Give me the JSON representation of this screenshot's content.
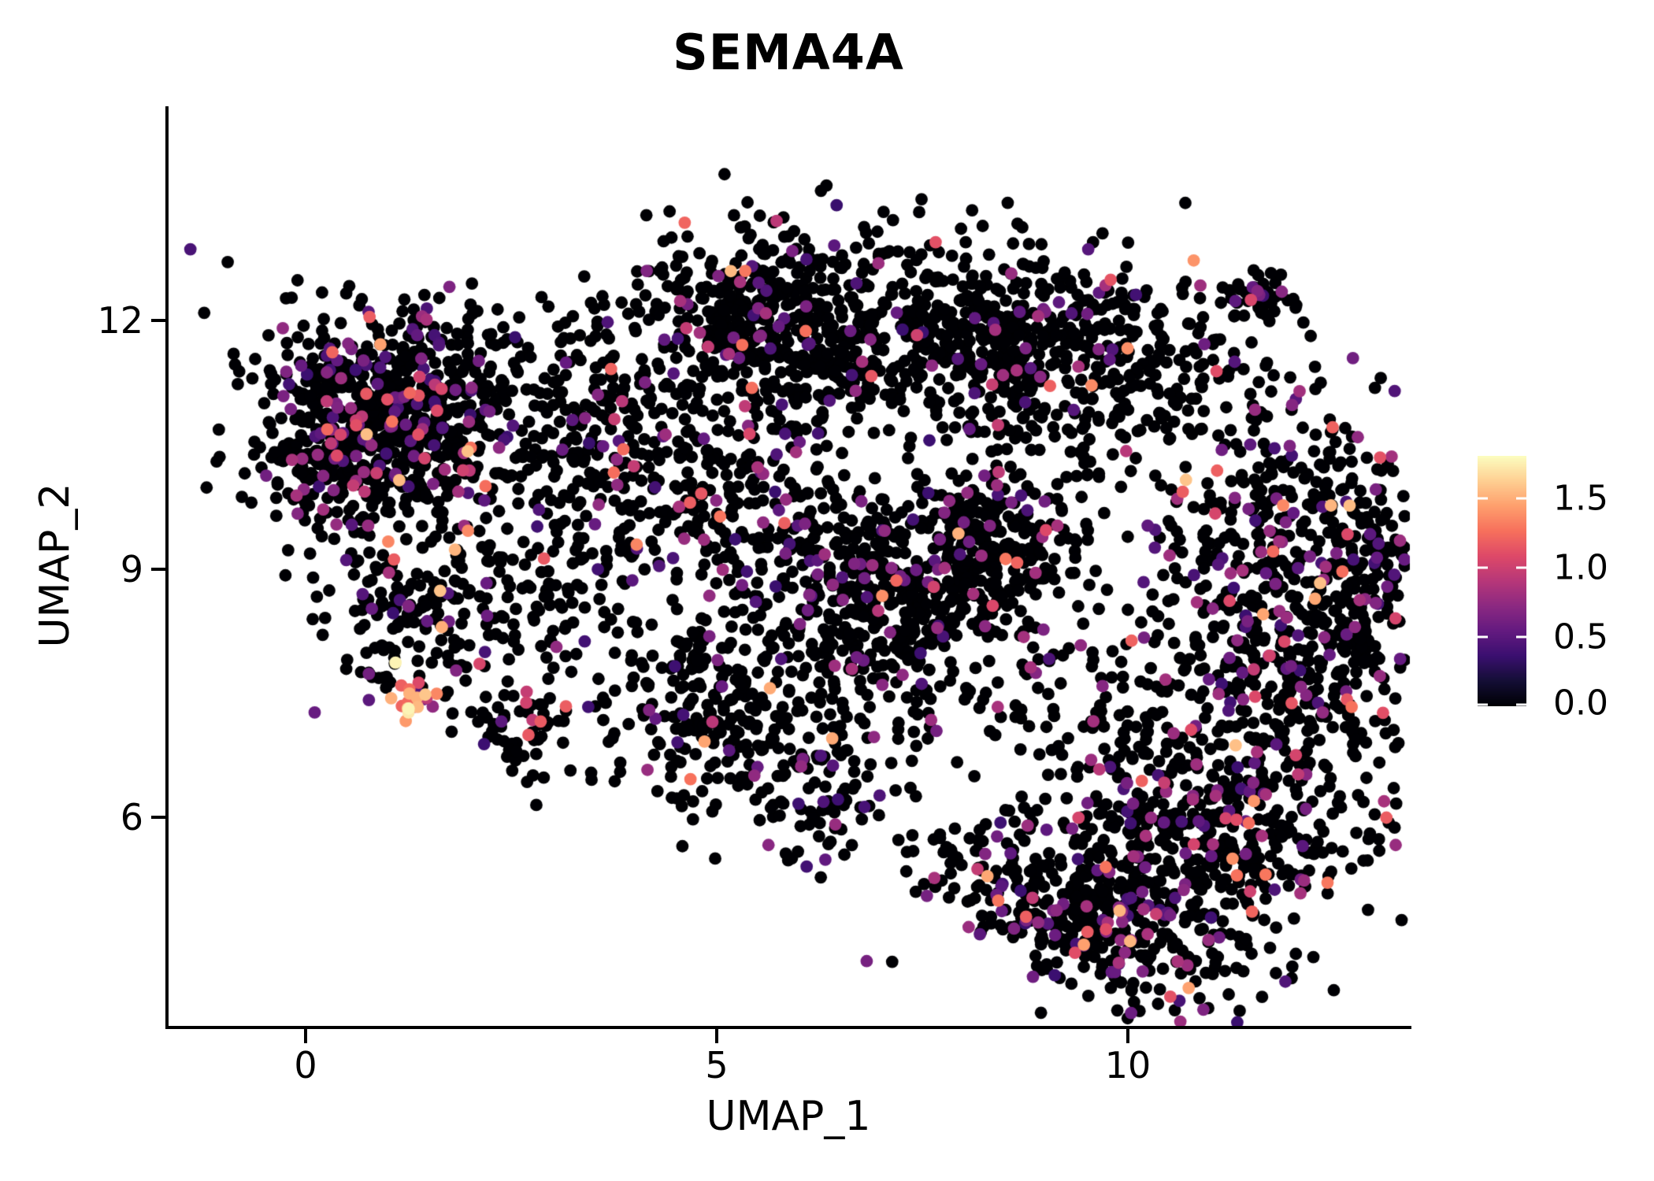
{
  "chart_data": {
    "type": "scatter",
    "title": "SEMA4A",
    "xlabel": "UMAP_1",
    "ylabel": "UMAP_2",
    "x_ticks": [
      {
        "value": 0,
        "label": "0"
      },
      {
        "value": 5,
        "label": "5"
      },
      {
        "value": 10,
        "label": "10"
      }
    ],
    "y_ticks": [
      {
        "value": 12,
        "label": "12"
      },
      {
        "value": 9,
        "label": "9"
      },
      {
        "value": 6,
        "label": "6"
      }
    ],
    "xlim": [
      -1.69,
      13.43
    ],
    "ylim": [
      3.46,
      14.6
    ],
    "grid": false,
    "background_color": "#ffffff",
    "point_radius_px": 7.9,
    "legend_position": "right",
    "colorbar": {
      "min": 0.0,
      "max": 1.81,
      "ticks": [
        {
          "value": 1.5,
          "label": "1.5"
        },
        {
          "value": 1.0,
          "label": "1.0"
        },
        {
          "value": 0.5,
          "label": "0.5"
        },
        {
          "value": 0.0,
          "label": "0.0"
        }
      ],
      "colormap": "magma"
    },
    "colormap_stops": [
      "#000004",
      "#140e36",
      "#3b0f70",
      "#641a80",
      "#8c2981",
      "#b73779",
      "#de4968",
      "#f7705c",
      "#fe9f6d",
      "#fecf92",
      "#fcfdbf"
    ],
    "expression_levels": {
      "zero": 0.0,
      "low": [
        0.35,
        0.85
      ],
      "mid": [
        0.9,
        1.3
      ],
      "high": [
        1.35,
        1.6
      ],
      "peak": [
        1.65,
        1.81
      ]
    },
    "mix_profiles": {
      "default": {
        "zero": 0.87,
        "low": 0.1,
        "mid": 0.023,
        "high": 0.007,
        "peak": 0
      },
      "rich": {
        "zero": 0.82,
        "low": 0.14,
        "mid": 0.033,
        "high": 0.007,
        "peak": 0
      },
      "sparse_col": {
        "zero": 0.9,
        "low": 0.085,
        "mid": 0.013,
        "high": 0.002,
        "peak": 0
      },
      "clump": {
        "zero": 0.12,
        "low": 0.18,
        "mid": 0.3,
        "high": 0.25,
        "peak": 0.15
      }
    },
    "seed": 1337,
    "clusters": [
      {
        "name": "left_main",
        "cx": 1.05,
        "cy": 10.9,
        "sx": 0.8,
        "sy": 0.62,
        "n": 740,
        "mix": "rich",
        "tilt": 0
      },
      {
        "name": "left_west",
        "cx": 0.3,
        "cy": 10.4,
        "sx": 0.35,
        "sy": 0.5,
        "n": 120,
        "mix": "rich",
        "tilt": 0
      },
      {
        "name": "left_arm",
        "cx": 1.45,
        "cy": 8.6,
        "sx": 0.62,
        "sy": 0.55,
        "n": 190,
        "mix": "default",
        "tilt": 0
      },
      {
        "name": "bright_clump",
        "cx": 1.3,
        "cy": 7.5,
        "sx": 0.17,
        "sy": 0.14,
        "n": 26,
        "mix": "clump",
        "tilt": 0
      },
      {
        "name": "clump2",
        "cx": 2.7,
        "cy": 7.1,
        "sx": 0.3,
        "sy": 0.28,
        "n": 60,
        "mix": "default",
        "tilt": 0
      },
      {
        "name": "mid_left_sparse",
        "cx": 3.2,
        "cy": 8.8,
        "sx": 0.6,
        "sy": 0.7,
        "n": 90,
        "mix": "default",
        "tilt": 0
      },
      {
        "name": "bridge",
        "cx": 3.4,
        "cy": 10.7,
        "sx": 0.6,
        "sy": 0.8,
        "n": 170,
        "mix": "default",
        "tilt": 0
      },
      {
        "name": "mid_top",
        "cx": 5.7,
        "cy": 11.9,
        "sx": 0.88,
        "sy": 0.62,
        "n": 540,
        "mix": "sparse_col",
        "tilt": 0
      },
      {
        "name": "top_scatter",
        "cx": 7.2,
        "cy": 12.3,
        "sx": 1.2,
        "sy": 0.5,
        "n": 80,
        "mix": "default",
        "tilt": 0
      },
      {
        "name": "mid_band",
        "cx": 4.9,
        "cy": 9.9,
        "sx": 0.85,
        "sy": 0.6,
        "n": 230,
        "mix": "default",
        "tilt": 0
      },
      {
        "name": "mid_dense",
        "cx": 6.9,
        "cy": 8.6,
        "sx": 0.85,
        "sy": 0.7,
        "n": 470,
        "mix": "sparse_col",
        "tilt": 0
      },
      {
        "name": "right_mid",
        "cx": 8.3,
        "cy": 9.3,
        "sx": 0.6,
        "sy": 0.5,
        "n": 260,
        "mix": "sparse_col",
        "tilt": 0
      },
      {
        "name": "mid_lower",
        "cx": 5.0,
        "cy": 7.3,
        "sx": 0.75,
        "sy": 0.65,
        "n": 250,
        "mix": "default",
        "tilt": 0
      },
      {
        "name": "mid_tail",
        "cx": 6.15,
        "cy": 6.3,
        "sx": 0.4,
        "sy": 0.5,
        "n": 85,
        "mix": "default",
        "tilt": 0
      },
      {
        "name": "right_top",
        "cx": 8.6,
        "cy": 11.7,
        "sx": 0.95,
        "sy": 0.6,
        "n": 470,
        "mix": "sparse_col",
        "tilt": 0
      },
      {
        "name": "tr_sparse",
        "cx": 10.3,
        "cy": 11.3,
        "sx": 0.75,
        "sy": 0.6,
        "n": 130,
        "mix": "default",
        "tilt": 0
      },
      {
        "name": "tr_clump",
        "cx": 11.55,
        "cy": 12.3,
        "sx": 0.22,
        "sy": 0.17,
        "n": 42,
        "mix": "default",
        "tilt": 0
      },
      {
        "name": "right_band",
        "cx": 11.8,
        "cy": 8.6,
        "sx": 0.8,
        "sy": 1.4,
        "n": 640,
        "mix": "rich",
        "tilt": 0
      },
      {
        "name": "right_rim",
        "cx": 12.85,
        "cy": 8.4,
        "sx": 0.33,
        "sy": 1.1,
        "n": 150,
        "mix": "rich",
        "tilt": 0
      },
      {
        "name": "right_wedge",
        "cx": 11.3,
        "cy": 5.6,
        "sx": 0.75,
        "sy": 0.75,
        "n": 280,
        "mix": "rich",
        "tilt": 0
      },
      {
        "name": "right_ll",
        "cx": 10.3,
        "cy": 6.3,
        "sx": 0.55,
        "sy": 0.75,
        "n": 180,
        "mix": "default",
        "tilt": 0
      },
      {
        "name": "gap_sparse",
        "cx": 9.4,
        "cy": 7.6,
        "sx": 0.65,
        "sy": 0.9,
        "n": 80,
        "mix": "default",
        "tilt": 0
      },
      {
        "name": "bottom",
        "cx": 9.4,
        "cy": 4.9,
        "sx": 0.95,
        "sy": 0.5,
        "n": 420,
        "mix": "rich",
        "tilt": -0.3
      }
    ]
  }
}
